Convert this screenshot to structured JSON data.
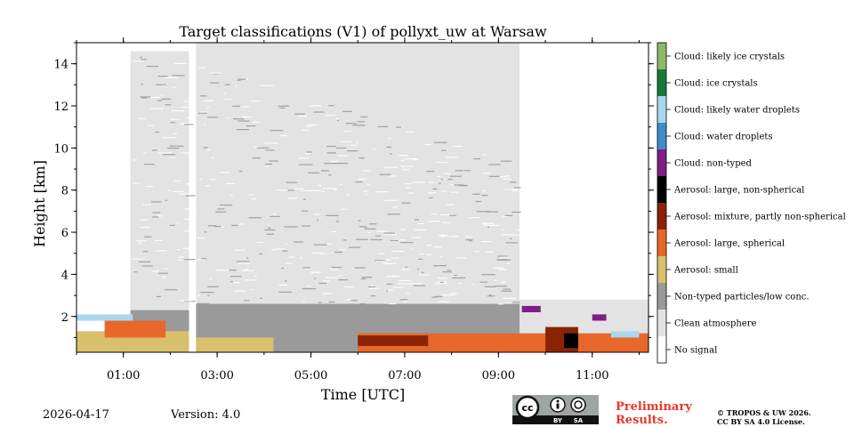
{
  "chart_data": {
    "type": "heatmap",
    "title": "Target classifications (V1) of pollyxt_uw at Warsaw",
    "xlabel": "Time [UTC]",
    "ylabel": "Height [km]",
    "xlim": [
      0,
      12.2
    ],
    "ylim": [
      0.3,
      15
    ],
    "x_ticks": [
      {
        "value": 1,
        "label": "01:00"
      },
      {
        "value": 3,
        "label": "03:00"
      },
      {
        "value": 5,
        "label": "05:00"
      },
      {
        "value": 7,
        "label": "07:00"
      },
      {
        "value": 9,
        "label": "09:00"
      },
      {
        "value": 11,
        "label": "11:00"
      }
    ],
    "y_ticks": [
      {
        "value": 2,
        "label": "2"
      },
      {
        "value": 4,
        "label": "4"
      },
      {
        "value": 6,
        "label": "6"
      },
      {
        "value": 8,
        "label": "8"
      },
      {
        "value": 10,
        "label": "10"
      },
      {
        "value": 12,
        "label": "12"
      },
      {
        "value": 14,
        "label": "14"
      }
    ],
    "classes": [
      {
        "label": "Cloud: likely ice crystals",
        "color": "#8fb76a"
      },
      {
        "label": "Cloud: ice crystals",
        "color": "#1b7a3a"
      },
      {
        "label": "Cloud: likely water droplets",
        "color": "#aad7f0"
      },
      {
        "label": "Cloud: water droplets",
        "color": "#3e8dc9"
      },
      {
        "label": "Cloud: non-typed",
        "color": "#7e1f86"
      },
      {
        "label": "Aerosol: large, non-spherical",
        "color": "#000000"
      },
      {
        "label": "Aerosol: mixture, partly non-spherical",
        "color": "#8b2405"
      },
      {
        "label": "Aerosol: large, spherical",
        "color": "#e8672a"
      },
      {
        "label": "Aerosol: small",
        "color": "#d9c06d"
      },
      {
        "label": "Non-typed particles/low conc.",
        "color": "#9a9a9a"
      },
      {
        "label": "Clean atmosphere",
        "color": "#e3e3e3"
      },
      {
        "label": "No signal",
        "color": "#ffffff"
      }
    ],
    "regions": [
      {
        "class": "Clean atmosphere",
        "t0": 1.15,
        "t1": 2.4,
        "h0": 0.3,
        "h1": 14.6
      },
      {
        "class": "Clean atmosphere",
        "t0": 2.55,
        "t1": 9.45,
        "h0": 0.3,
        "h1": 15.0
      },
      {
        "class": "Clean atmosphere",
        "t0": 9.45,
        "t1": 12.2,
        "h0": 0.3,
        "h1": 2.8
      },
      {
        "class": "Non-typed particles/low conc.",
        "t0": 2.55,
        "t1": 9.45,
        "h0": 0.3,
        "h1": 2.6
      },
      {
        "class": "Non-typed particles/low conc.",
        "t0": 1.15,
        "t1": 2.4,
        "h0": 0.3,
        "h1": 2.3
      },
      {
        "class": "Aerosol: small",
        "t0": 0.0,
        "t1": 2.4,
        "h0": 0.3,
        "h1": 1.3
      },
      {
        "class": "Aerosol: small",
        "t0": 2.55,
        "t1": 4.2,
        "h0": 0.3,
        "h1": 1.0
      },
      {
        "class": "Aerosol: large, spherical",
        "t0": 0.6,
        "t1": 1.9,
        "h0": 1.0,
        "h1": 1.8
      },
      {
        "class": "Aerosol: large, spherical",
        "t0": 6.0,
        "t1": 12.2,
        "h0": 0.3,
        "h1": 1.2
      },
      {
        "class": "Aerosol: mixture, partly non-spherical",
        "t0": 6.0,
        "t1": 7.5,
        "h0": 0.6,
        "h1": 1.1
      },
      {
        "class": "Aerosol: mixture, partly non-spherical",
        "t0": 10.0,
        "t1": 10.7,
        "h0": 0.3,
        "h1": 1.5
      },
      {
        "class": "Aerosol: large, non-spherical",
        "t0": 10.4,
        "t1": 10.7,
        "h0": 0.5,
        "h1": 1.2
      },
      {
        "class": "Cloud: non-typed",
        "t0": 11.0,
        "t1": 11.3,
        "h0": 1.8,
        "h1": 2.1
      },
      {
        "class": "Cloud: non-typed",
        "t0": 9.5,
        "t1": 9.9,
        "h0": 2.2,
        "h1": 2.5
      },
      {
        "class": "Cloud: likely water droplets",
        "t0": 0.0,
        "t1": 1.2,
        "h0": 1.8,
        "h1": 2.1
      },
      {
        "class": "Cloud: likely water droplets",
        "t0": 11.4,
        "t1": 12.0,
        "h0": 1.0,
        "h1": 1.3
      }
    ]
  },
  "footer": {
    "date": "2026-04-17",
    "version": "Version: 4.0",
    "preliminary": [
      "Preliminary",
      "Results."
    ],
    "copyright": [
      "© TROPOS & UW 2026.",
      "CC BY SA 4.0 License."
    ],
    "license_badge": {
      "cc": "cc",
      "by": "BY",
      "sa": "SA"
    }
  }
}
